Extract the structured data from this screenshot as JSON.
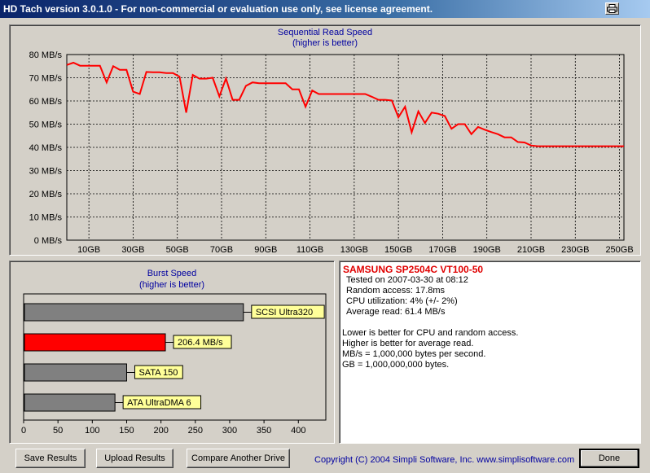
{
  "window": {
    "title": "HD Tach version 3.0.1.0  - For non-commercial or evaluation use only, see license agreement."
  },
  "sequential": {
    "title": "Sequential Read Speed",
    "subtitle": "(higher is better)"
  },
  "burst": {
    "title": "Burst Speed",
    "subtitle": "(higher is better)"
  },
  "info": {
    "drive": "SAMSUNG  SP2504C VT100-50",
    "lines": [
      "Tested on 2007-03-30 at 08:12",
      "Random access: 17.8ms",
      "CPU utilization: 4% (+/- 2%)",
      "Average read: 61.4 MB/s"
    ],
    "notes": [
      "Lower is better for CPU and random access.",
      "Higher is better for average read.",
      "MB/s = 1,000,000 bytes per second.",
      "GB = 1,000,000,000 bytes."
    ]
  },
  "buttons": {
    "save": "Save Results",
    "upload": "Upload Results",
    "compare": "Compare Another Drive",
    "done": "Done"
  },
  "copyright": "Copyright (C) 2004 Simpli Software, Inc. www.simplisoftware.com",
  "icons": {
    "print": "printer-icon"
  },
  "colors": {
    "accent_line": "#ff0000",
    "title_blue": "#0000a0",
    "label_bg": "#ffff99",
    "bar_gray": "#808080"
  },
  "chart_data": [
    {
      "type": "line",
      "title": "Sequential Read Speed",
      "subtitle": "(higher is better)",
      "xlabel": "",
      "ylabel": "",
      "xlim": [
        0,
        252
      ],
      "ylim": [
        0,
        80
      ],
      "y_ticks": [
        "0 MB/s",
        "10 MB/s",
        "20 MB/s",
        "30 MB/s",
        "40 MB/s",
        "50 MB/s",
        "60 MB/s",
        "70 MB/s",
        "80 MB/s"
      ],
      "x_ticks": [
        "10GB",
        "30GB",
        "50GB",
        "70GB",
        "90GB",
        "110GB",
        "130GB",
        "150GB",
        "170GB",
        "190GB",
        "210GB",
        "230GB",
        "250GB"
      ],
      "x_tick_values": [
        10,
        30,
        50,
        70,
        90,
        110,
        130,
        150,
        170,
        190,
        210,
        230,
        250
      ],
      "grid": true,
      "series": [
        {
          "x": [
            0,
            3,
            6,
            9,
            12,
            15,
            18,
            21,
            24,
            27,
            30,
            33,
            36,
            39,
            42,
            45,
            48,
            51,
            54,
            57,
            60,
            63,
            66,
            69,
            72,
            75,
            78,
            81,
            84,
            87,
            90,
            93,
            96,
            99,
            102,
            105,
            108,
            111,
            114,
            117,
            120,
            123,
            126,
            129,
            132,
            135,
            138,
            141,
            144,
            147,
            150,
            153,
            156,
            159,
            162,
            165,
            168,
            171,
            174,
            177,
            180,
            183,
            186,
            189,
            192,
            195,
            198,
            201,
            204,
            207,
            210,
            213,
            216,
            219,
            222,
            225,
            228,
            231,
            234,
            237,
            240,
            243,
            246,
            249,
            252
          ],
          "values": [
            75.5,
            76.5,
            75.2,
            75.2,
            75.2,
            75.2,
            68,
            75,
            73.4,
            73.4,
            64,
            63,
            72.5,
            72.4,
            72.4,
            72,
            72,
            70.5,
            55,
            71.2,
            69.6,
            69.6,
            70,
            62,
            69.7,
            60.5,
            60.5,
            66.5,
            68,
            67.6,
            67.6,
            67.6,
            67.6,
            67.6,
            65,
            65,
            57.5,
            64.5,
            63,
            63,
            63,
            63,
            63,
            63,
            63,
            63,
            61.8,
            60.5,
            60.5,
            60.2,
            53,
            57.5,
            46.5,
            55.5,
            50.5,
            55,
            54.5,
            53.5,
            48,
            50,
            50,
            45.7,
            48.8,
            47.6,
            46.6,
            45.7,
            44.3,
            44.3,
            42.3,
            42.1,
            40.8,
            40.5,
            40.5,
            40.5,
            40.5,
            40.5,
            40.5,
            40.5,
            40.5,
            40.5,
            40.5,
            40.5,
            40.5,
            40.5,
            40.5
          ]
        }
      ]
    },
    {
      "type": "bar",
      "title": "Burst Speed",
      "subtitle": "(higher is better)",
      "orientation": "horizontal",
      "xlim": [
        0,
        440
      ],
      "x_ticks": [
        "0",
        "50",
        "100",
        "150",
        "200",
        "250",
        "300",
        "350",
        "400"
      ],
      "categories": [
        "SCSI Ultra320",
        "206.4 MB/s",
        "SATA 150",
        "ATA UltraDMA 6"
      ],
      "values": [
        320,
        206.4,
        150,
        133
      ],
      "bar_colors": [
        "#808080",
        "#ff0000",
        "#808080",
        "#808080"
      ]
    }
  ]
}
